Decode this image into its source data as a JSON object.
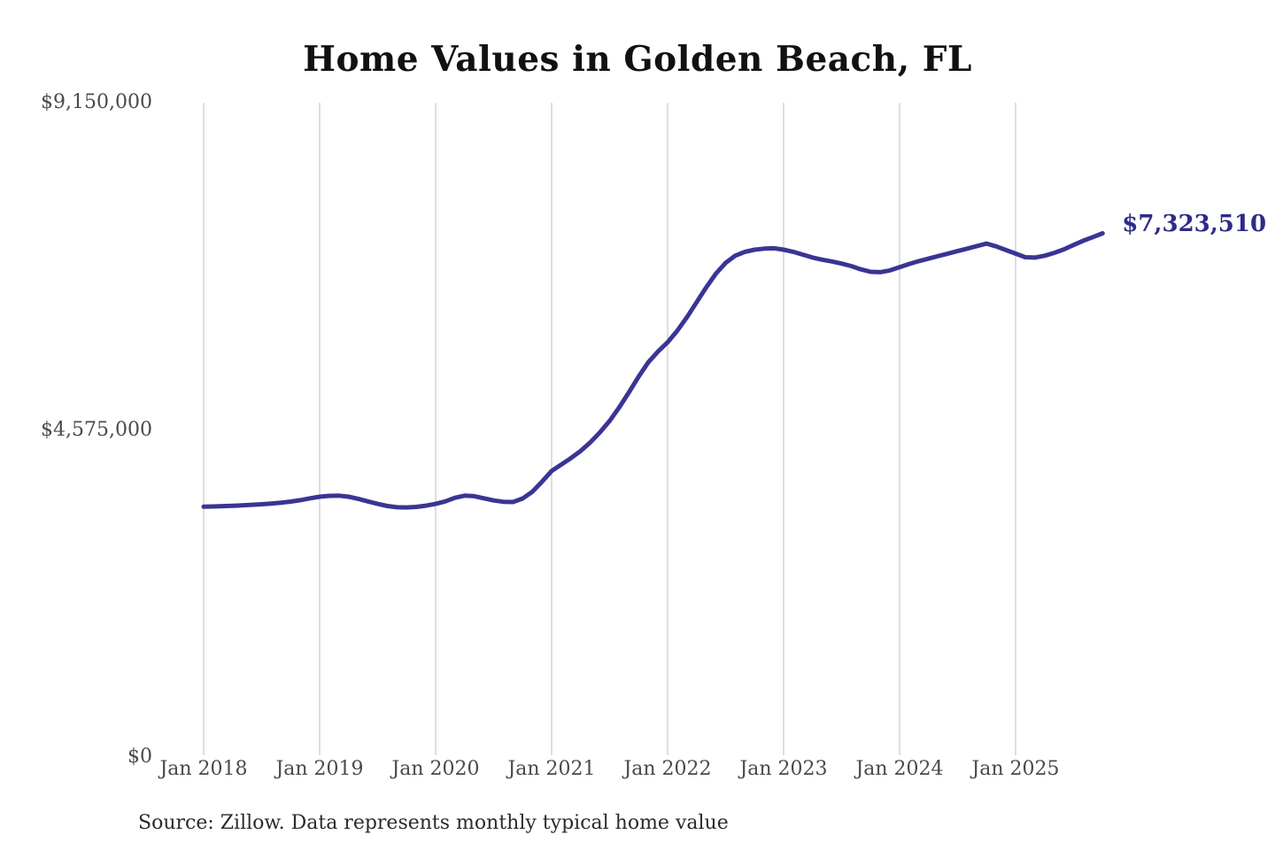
{
  "page": {
    "title": "Home Values in Golden Beach, FL",
    "source_note": "Source: Zillow. Data represents monthly typical home value"
  },
  "chart_data": {
    "type": "line",
    "title": "Home Values in Golden Beach, FL",
    "series_name": "Monthly typical home value",
    "source_note": "Source: Zillow. Data represents monthly typical home value",
    "end_label": "$7,323,510",
    "last_value": 7323510,
    "ylim": [
      0,
      9150000
    ],
    "y_ticks": [
      0,
      4575000,
      9150000
    ],
    "y_tick_labels": [
      "$0",
      "$4,575,000",
      "$9,150,000"
    ],
    "x_tick_labels": [
      "Jan 2018",
      "Jan 2019",
      "Jan 2020",
      "Jan 2021",
      "Jan 2022",
      "Jan 2023",
      "Jan 2024",
      "Jan 2025"
    ],
    "grid": "vertical-only",
    "legend": "none",
    "colors": {
      "line": "#3a3494",
      "end_label": "#2f2b87",
      "grid": "#cccccc",
      "axis_text": "#4a4a4a",
      "title": "#111111",
      "source_text": "#2b2b2b",
      "background": "#ffffff"
    },
    "x": [
      "2018-01",
      "2018-02",
      "2018-03",
      "2018-04",
      "2018-05",
      "2018-06",
      "2018-07",
      "2018-08",
      "2018-09",
      "2018-10",
      "2018-11",
      "2018-12",
      "2019-01",
      "2019-02",
      "2019-03",
      "2019-04",
      "2019-05",
      "2019-06",
      "2019-07",
      "2019-08",
      "2019-09",
      "2019-10",
      "2019-11",
      "2019-12",
      "2020-01",
      "2020-02",
      "2020-03",
      "2020-04",
      "2020-05",
      "2020-06",
      "2020-07",
      "2020-08",
      "2020-09",
      "2020-10",
      "2020-11",
      "2020-12",
      "2021-01",
      "2021-02",
      "2021-03",
      "2021-04",
      "2021-05",
      "2021-06",
      "2021-07",
      "2021-08",
      "2021-09",
      "2021-10",
      "2021-11",
      "2021-12",
      "2022-01",
      "2022-02",
      "2022-03",
      "2022-04",
      "2022-05",
      "2022-06",
      "2022-07",
      "2022-08",
      "2022-09",
      "2022-10",
      "2022-11",
      "2022-12",
      "2023-01",
      "2023-02",
      "2023-03",
      "2023-04",
      "2023-05",
      "2023-06",
      "2023-07",
      "2023-08",
      "2023-09",
      "2023-10",
      "2023-11",
      "2023-12",
      "2024-01",
      "2024-02",
      "2024-03",
      "2024-04",
      "2024-05",
      "2024-06",
      "2024-07",
      "2024-08",
      "2024-09",
      "2024-10",
      "2024-11",
      "2024-12",
      "2025-01",
      "2025-02",
      "2025-03",
      "2025-04",
      "2025-05",
      "2025-06",
      "2025-07",
      "2025-08",
      "2025-09",
      "2025-10"
    ],
    "values": [
      3500000,
      3504000,
      3509000,
      3514000,
      3520000,
      3527000,
      3535000,
      3545000,
      3557000,
      3572000,
      3592000,
      3618000,
      3640000,
      3652000,
      3655000,
      3640000,
      3610000,
      3575000,
      3540000,
      3510000,
      3493000,
      3490000,
      3498000,
      3515000,
      3540000,
      3575000,
      3625000,
      3655000,
      3648000,
      3618000,
      3588000,
      3570000,
      3566000,
      3615000,
      3710000,
      3850000,
      4000000,
      4090000,
      4180000,
      4280000,
      4400000,
      4540000,
      4700000,
      4890000,
      5100000,
      5320000,
      5520000,
      5670000,
      5800000,
      5960000,
      6150000,
      6360000,
      6570000,
      6760000,
      6910000,
      7010000,
      7065000,
      7095000,
      7110000,
      7115000,
      7095000,
      7065000,
      7025000,
      6985000,
      6955000,
      6930000,
      6900000,
      6865000,
      6820000,
      6785000,
      6780000,
      6805000,
      6850000,
      6895000,
      6935000,
      6970000,
      7005000,
      7040000,
      7075000,
      7110000,
      7145000,
      7180000,
      7140000,
      7090000,
      7040000,
      6990000,
      6985000,
      7010000,
      7050000,
      7100000,
      7160000,
      7220000,
      7270000,
      7323510
    ]
  }
}
